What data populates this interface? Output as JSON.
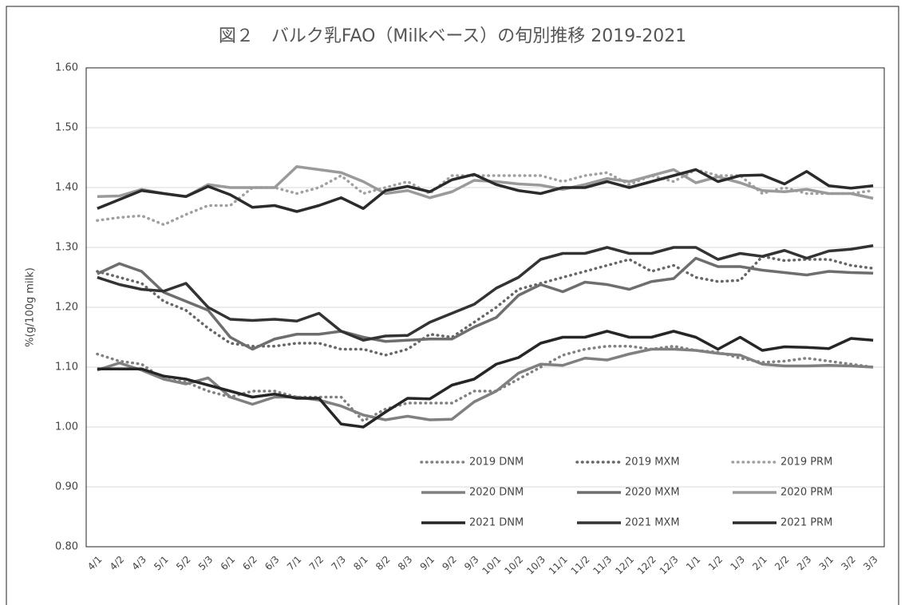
{
  "chart_data": {
    "type": "line",
    "title": "図２　バルク乳FAO（Milkベース）の旬別推移 2019-2021",
    "ylabel": "%(g/100g milk)",
    "categories": [
      "4/1",
      "4/2",
      "4/3",
      "5/1",
      "5/2",
      "5/3",
      "6/1",
      "6/2",
      "6/3",
      "7/1",
      "7/2",
      "7/3",
      "8/1",
      "8/2",
      "8/3",
      "9/1",
      "9/2",
      "9/3",
      "10/1",
      "10/2",
      "10/3",
      "11/1",
      "11/2",
      "11/3",
      "12/1",
      "12/2",
      "12/3",
      "1/1",
      "1/2",
      "1/3",
      "2/1",
      "2/2",
      "2/3",
      "3/1",
      "3/2",
      "3/3"
    ],
    "ylim": [
      0.8,
      1.6
    ],
    "yticks": [
      {
        "value": 0.8,
        "label": "0.80"
      },
      {
        "value": 0.9,
        "label": "0.90"
      },
      {
        "value": 1.0,
        "label": "1.00"
      },
      {
        "value": 1.1,
        "label": "1.10"
      },
      {
        "value": 1.2,
        "label": "1.20"
      },
      {
        "value": 1.3,
        "label": "1.30"
      },
      {
        "value": 1.4,
        "label": "1.40"
      },
      {
        "value": 1.5,
        "label": "1.50"
      },
      {
        "value": 1.6,
        "label": "1.60"
      }
    ],
    "grid": true,
    "legend": "bottom-right",
    "series": [
      {
        "name": "2019 DNM",
        "color": "#808080",
        "dash": "dotted",
        "values": [
          1.122,
          1.11,
          1.105,
          1.08,
          1.075,
          1.06,
          1.05,
          1.06,
          1.06,
          1.05,
          1.05,
          1.05,
          1.01,
          1.03,
          1.04,
          1.04,
          1.04,
          1.06,
          1.06,
          1.08,
          1.1,
          1.12,
          1.13,
          1.135,
          1.135,
          1.13,
          1.135,
          1.128,
          1.125,
          1.115,
          1.108,
          1.11,
          1.115,
          1.11,
          1.105,
          1.1
        ]
      },
      {
        "name": "2019 MXM",
        "color": "#666666",
        "dash": "dotted",
        "values": [
          1.26,
          1.25,
          1.24,
          1.21,
          1.195,
          1.165,
          1.14,
          1.135,
          1.135,
          1.14,
          1.14,
          1.13,
          1.13,
          1.12,
          1.13,
          1.155,
          1.15,
          1.175,
          1.2,
          1.23,
          1.24,
          1.25,
          1.26,
          1.27,
          1.28,
          1.26,
          1.27,
          1.25,
          1.243,
          1.245,
          1.285,
          1.278,
          1.28,
          1.28,
          1.27,
          1.265
        ]
      },
      {
        "name": "2019 PRM",
        "color": "#a0a0a0",
        "dash": "dotted",
        "values": [
          1.345,
          1.35,
          1.353,
          1.338,
          1.355,
          1.37,
          1.37,
          1.4,
          1.4,
          1.39,
          1.4,
          1.42,
          1.39,
          1.4,
          1.41,
          1.39,
          1.42,
          1.42,
          1.42,
          1.42,
          1.42,
          1.41,
          1.42,
          1.425,
          1.405,
          1.42,
          1.41,
          1.43,
          1.42,
          1.42,
          1.39,
          1.4,
          1.39,
          1.39,
          1.39,
          1.395
        ]
      },
      {
        "name": "2020 DNM",
        "color": "#808080",
        "dash": "solid",
        "values": [
          1.095,
          1.107,
          1.095,
          1.08,
          1.072,
          1.082,
          1.05,
          1.038,
          1.05,
          1.05,
          1.045,
          1.035,
          1.02,
          1.012,
          1.018,
          1.012,
          1.013,
          1.042,
          1.06,
          1.09,
          1.105,
          1.103,
          1.115,
          1.112,
          1.122,
          1.13,
          1.13,
          1.128,
          1.123,
          1.12,
          1.105,
          1.102,
          1.102,
          1.103,
          1.102,
          1.1
        ]
      },
      {
        "name": "2020 MXM",
        "color": "#6e6e6e",
        "dash": "solid",
        "values": [
          1.256,
          1.273,
          1.26,
          1.225,
          1.21,
          1.195,
          1.15,
          1.13,
          1.147,
          1.155,
          1.155,
          1.16,
          1.15,
          1.143,
          1.145,
          1.147,
          1.147,
          1.167,
          1.183,
          1.22,
          1.238,
          1.226,
          1.242,
          1.238,
          1.23,
          1.243,
          1.248,
          1.282,
          1.268,
          1.268,
          1.262,
          1.258,
          1.254,
          1.26,
          1.258,
          1.257
        ]
      },
      {
        "name": "2020 PRM",
        "color": "#9a9a9a",
        "dash": "solid",
        "values": [
          1.385,
          1.386,
          1.397,
          1.39,
          1.385,
          1.405,
          1.4,
          1.4,
          1.4,
          1.435,
          1.43,
          1.425,
          1.41,
          1.39,
          1.395,
          1.383,
          1.393,
          1.412,
          1.41,
          1.406,
          1.404,
          1.397,
          1.405,
          1.415,
          1.41,
          1.42,
          1.43,
          1.408,
          1.418,
          1.408,
          1.395,
          1.393,
          1.397,
          1.39,
          1.39,
          1.382
        ]
      },
      {
        "name": "2021 DNM",
        "color": "#262626",
        "dash": "solid",
        "values": [
          1.097,
          1.097,
          1.097,
          1.085,
          1.08,
          1.07,
          1.06,
          1.05,
          1.055,
          1.048,
          1.048,
          1.005,
          1.0,
          1.025,
          1.048,
          1.047,
          1.07,
          1.08,
          1.105,
          1.116,
          1.14,
          1.15,
          1.15,
          1.16,
          1.15,
          1.15,
          1.16,
          1.15,
          1.13,
          1.15,
          1.128,
          1.134,
          1.133,
          1.131,
          1.148,
          1.145
        ]
      },
      {
        "name": "2021 MXM",
        "color": "#333333",
        "dash": "solid",
        "values": [
          1.25,
          1.238,
          1.23,
          1.227,
          1.24,
          1.2,
          1.18,
          1.178,
          1.18,
          1.177,
          1.19,
          1.16,
          1.145,
          1.152,
          1.153,
          1.175,
          1.19,
          1.205,
          1.232,
          1.25,
          1.28,
          1.29,
          1.29,
          1.3,
          1.29,
          1.29,
          1.3,
          1.3,
          1.28,
          1.29,
          1.285,
          1.295,
          1.282,
          1.294,
          1.297,
          1.303
        ]
      },
      {
        "name": "2021 PRM",
        "color": "#2b2b2b",
        "dash": "solid",
        "values": [
          1.365,
          1.38,
          1.395,
          1.39,
          1.385,
          1.402,
          1.388,
          1.367,
          1.37,
          1.36,
          1.37,
          1.383,
          1.365,
          1.395,
          1.402,
          1.393,
          1.413,
          1.422,
          1.405,
          1.395,
          1.39,
          1.4,
          1.4,
          1.41,
          1.4,
          1.41,
          1.42,
          1.43,
          1.41,
          1.42,
          1.421,
          1.406,
          1.427,
          1.403,
          1.399,
          1.403
        ]
      }
    ]
  }
}
